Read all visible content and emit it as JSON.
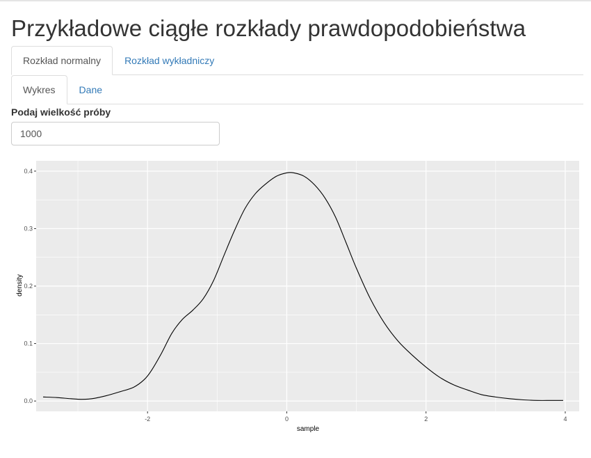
{
  "page": {
    "title": "Przykładowe ciągłe rozkłady prawdopodobieństwa"
  },
  "tabs_main": [
    {
      "label": "Rozkład normalny",
      "active": true
    },
    {
      "label": "Rozkład wykładniczy",
      "active": false
    }
  ],
  "tabs_sub": [
    {
      "label": "Wykres",
      "active": true
    },
    {
      "label": "Dane",
      "active": false
    }
  ],
  "sample_input": {
    "label": "Podaj wielkość próby",
    "value": "1000"
  },
  "colors": {
    "panel_bg": "#ebebeb",
    "grid": "#ffffff",
    "line": "#000000",
    "tab_link": "#337ab7"
  },
  "chart_data": {
    "type": "line",
    "title": "",
    "xlabel": "sample",
    "ylabel": "density",
    "xlim": [
      -3.6,
      4.2
    ],
    "ylim": [
      -0.018,
      0.418
    ],
    "x_ticks": [
      -2,
      0,
      2,
      4
    ],
    "x_tick_labels": [
      "-2",
      "0",
      "2",
      "4"
    ],
    "y_ticks": [
      0.0,
      0.1,
      0.2,
      0.3,
      0.4
    ],
    "y_tick_labels": [
      "0.0",
      "0.1",
      "0.2",
      "0.3",
      "0.4"
    ],
    "grid": true,
    "series": [
      {
        "x": [
          -3.5,
          -3.3,
          -3.1,
          -2.95,
          -2.8,
          -2.6,
          -2.4,
          -2.2,
          -2.05,
          -1.95,
          -1.8,
          -1.65,
          -1.5,
          -1.35,
          -1.2,
          -1.05,
          -0.9,
          -0.75,
          -0.6,
          -0.45,
          -0.3,
          -0.15,
          0.0,
          0.1,
          0.25,
          0.4,
          0.55,
          0.7,
          0.85,
          1.0,
          1.2,
          1.4,
          1.6,
          1.8,
          2.0,
          2.2,
          2.4,
          2.6,
          2.8,
          3.0,
          3.2,
          3.4,
          3.6,
          3.8,
          3.97
        ],
        "y": [
          0.007,
          0.006,
          0.004,
          0.003,
          0.004,
          0.009,
          0.016,
          0.024,
          0.037,
          0.052,
          0.083,
          0.118,
          0.142,
          0.158,
          0.178,
          0.21,
          0.254,
          0.297,
          0.335,
          0.361,
          0.378,
          0.391,
          0.397,
          0.397,
          0.391,
          0.376,
          0.353,
          0.32,
          0.276,
          0.231,
          0.178,
          0.136,
          0.104,
          0.08,
          0.059,
          0.041,
          0.028,
          0.019,
          0.011,
          0.007,
          0.004,
          0.002,
          0.001,
          0.001,
          0.001
        ]
      }
    ]
  }
}
